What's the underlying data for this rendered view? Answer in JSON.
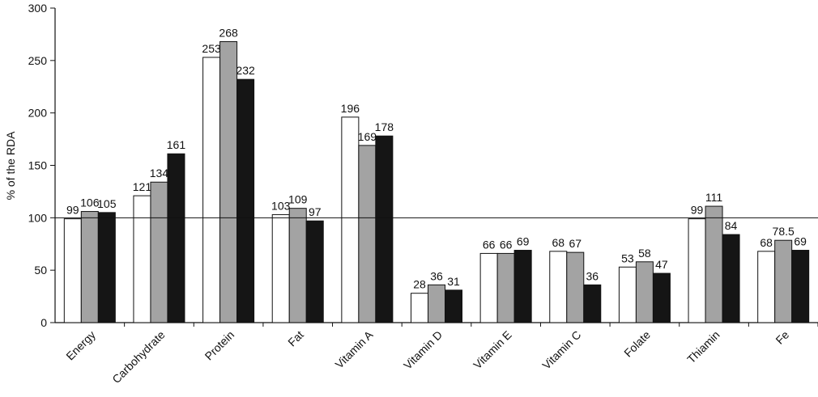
{
  "chart_data": {
    "type": "bar",
    "y_label": "% of the RDA",
    "categories": [
      "Energy",
      "Carbohydrate",
      "Protein",
      "Fat",
      "Vitamin A",
      "Vitamin D",
      "Vitamin E",
      "Vitamin C",
      "Folate",
      "Thiamin",
      "Fe"
    ],
    "series": [
      {
        "color": "#ffffff",
        "values": [
          99,
          121,
          253,
          103,
          196,
          28,
          66,
          68,
          53,
          99,
          68
        ]
      },
      {
        "color": "#a3a3a3",
        "values": [
          106,
          134,
          268,
          109,
          169,
          36,
          66,
          67,
          58,
          111,
          78.5
        ]
      },
      {
        "color": "#151515",
        "values": [
          105,
          161,
          232,
          97,
          178,
          31,
          69,
          36,
          47,
          84,
          69
        ]
      }
    ],
    "reference_line": 100,
    "ylim": [
      0,
      300
    ],
    "yticks": [
      0,
      50,
      100,
      150,
      200,
      250,
      300
    ],
    "grid": false
  }
}
